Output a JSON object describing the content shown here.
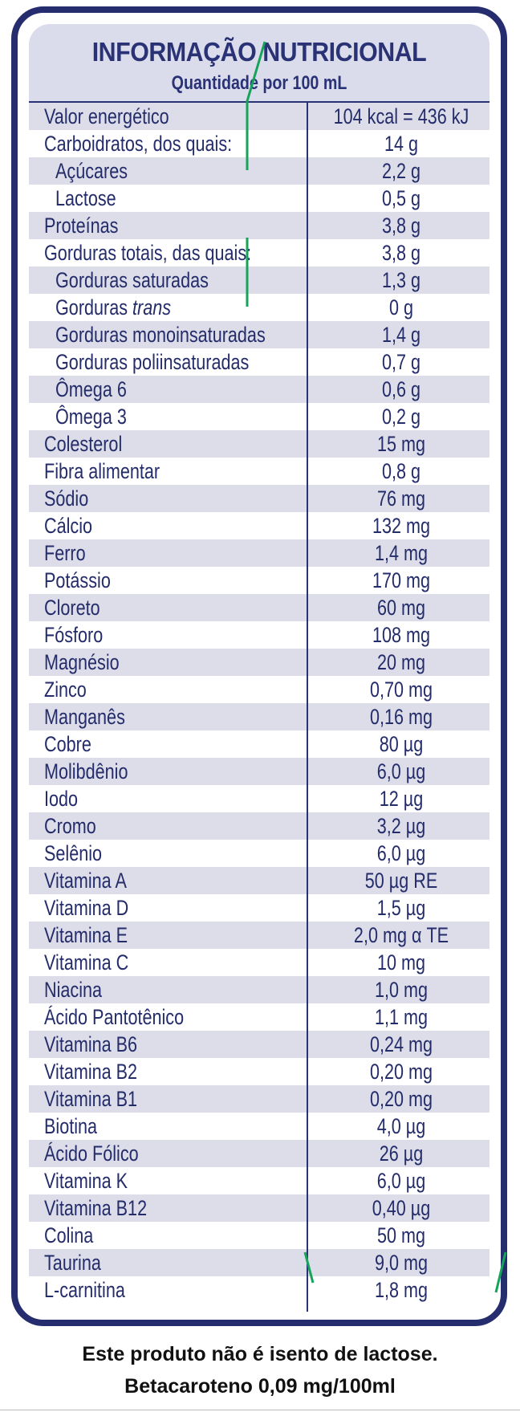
{
  "header": {
    "title": "INFORMAÇÃO NUTRICIONAL",
    "subtitle": "Quantidade por 100 mL"
  },
  "rows": [
    {
      "label": "Valor energético",
      "value": "104 kcal = 436 kJ"
    },
    {
      "label": "Carboidratos, dos quais:",
      "value": "14 g"
    },
    {
      "label": "Açúcares",
      "value": "2,2 g",
      "indent": true
    },
    {
      "label": "Lactose",
      "value": "0,5 g",
      "indent": true
    },
    {
      "label": "Proteínas",
      "value": "3,8 g"
    },
    {
      "label": "Gorduras totais, das quais:",
      "value": "3,8 g"
    },
    {
      "label": "Gorduras saturadas",
      "value": "1,3 g",
      "indent": true
    },
    {
      "label": "Gorduras trans",
      "value": "0 g",
      "indent": true
    },
    {
      "label": "Gorduras monoinsaturadas",
      "value": "1,4 g",
      "indent": true
    },
    {
      "label": "Gorduras poliinsaturadas",
      "value": "0,7 g",
      "indent": true
    },
    {
      "label": "Ômega 6",
      "value": "0,6 g",
      "indent": true
    },
    {
      "label": "Ômega 3",
      "value": "0,2 g",
      "indent": true
    },
    {
      "label": "Colesterol",
      "value": "15 mg"
    },
    {
      "label": "Fibra alimentar",
      "value": "0,8 g"
    },
    {
      "label": "Sódio",
      "value": "76 mg"
    },
    {
      "label": "Cálcio",
      "value": "132 mg"
    },
    {
      "label": "Ferro",
      "value": "1,4 mg"
    },
    {
      "label": "Potássio",
      "value": "170 mg"
    },
    {
      "label": "Cloreto",
      "value": "60 mg"
    },
    {
      "label": "Fósforo",
      "value": "108 mg"
    },
    {
      "label": "Magnésio",
      "value": "20 mg"
    },
    {
      "label": "Zinco",
      "value": "0,70 mg"
    },
    {
      "label": "Manganês",
      "value": "0,16 mg"
    },
    {
      "label": "Cobre",
      "value": "80 µg"
    },
    {
      "label": "Molibdênio",
      "value": "6,0 µg"
    },
    {
      "label": "Iodo",
      "value": "12 µg"
    },
    {
      "label": "Cromo",
      "value": "3,2 µg"
    },
    {
      "label": "Selênio",
      "value": "6,0 µg"
    },
    {
      "label": "Vitamina A",
      "value": "50 µg RE"
    },
    {
      "label": "Vitamina D",
      "value": "1,5 µg"
    },
    {
      "label": "Vitamina E",
      "value": "2,0 mg α TE"
    },
    {
      "label": "Vitamina C",
      "value": "10 mg"
    },
    {
      "label": "Niacina",
      "value": "1,0 mg"
    },
    {
      "label": "Ácido Pantotênico",
      "value": "1,1 mg"
    },
    {
      "label": "Vitamina B6",
      "value": "0,24 mg"
    },
    {
      "label": "Vitamina B2",
      "value": "0,20 mg"
    },
    {
      "label": "Vitamina B1",
      "value": "0,20 mg"
    },
    {
      "label": "Biotina",
      "value": "4,0 µg"
    },
    {
      "label": "Ácido Fólico",
      "value": "26 µg"
    },
    {
      "label": "Vitamina K",
      "value": "6,0 µg"
    },
    {
      "label": "Vitamina B12",
      "value": "0,40 µg"
    },
    {
      "label": "Colina",
      "value": "50 mg"
    },
    {
      "label": "Taurina",
      "value": "9,0 mg"
    },
    {
      "label": "L-carnitina",
      "value": "1,8 mg"
    }
  ],
  "footnotes": {
    "line1": "Este produto não é isento de lactose.",
    "line2": "Betacaroteno 0,09 mg/100ml"
  },
  "colors": {
    "border": "#252d6e",
    "text": "#242c6a",
    "shade": "#dcdde9",
    "marker": "#16a35a"
  }
}
